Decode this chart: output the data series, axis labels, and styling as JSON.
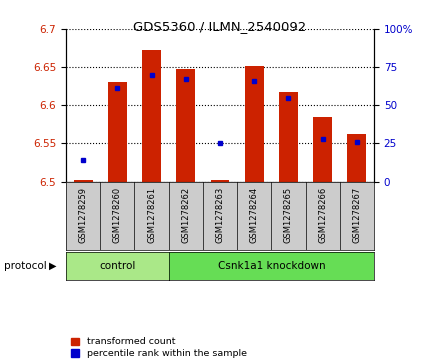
{
  "title": "GDS5360 / ILMN_2540092",
  "samples": [
    "GSM1278259",
    "GSM1278260",
    "GSM1278261",
    "GSM1278262",
    "GSM1278263",
    "GSM1278264",
    "GSM1278265",
    "GSM1278266",
    "GSM1278267"
  ],
  "red_values": [
    6.502,
    6.63,
    6.672,
    6.648,
    6.502,
    6.652,
    6.617,
    6.585,
    6.562
  ],
  "blue_values": [
    14,
    61,
    70,
    67,
    25,
    66,
    55,
    28,
    26
  ],
  "y_min": 6.5,
  "y_max": 6.7,
  "y_ticks": [
    6.5,
    6.55,
    6.6,
    6.65,
    6.7
  ],
  "right_y_ticks": [
    0,
    25,
    50,
    75,
    100
  ],
  "control_samples": 3,
  "protocol_label": "protocol",
  "group1_label": "control",
  "group2_label": "Csnk1a1 knockdown",
  "legend_red": "transformed count",
  "legend_blue": "percentile rank within the sample",
  "bar_color": "#cc2200",
  "dot_color": "#0000cc",
  "group1_color": "#aae888",
  "group2_color": "#66dd55",
  "tick_bg_color": "#cccccc",
  "bar_width": 0.55
}
